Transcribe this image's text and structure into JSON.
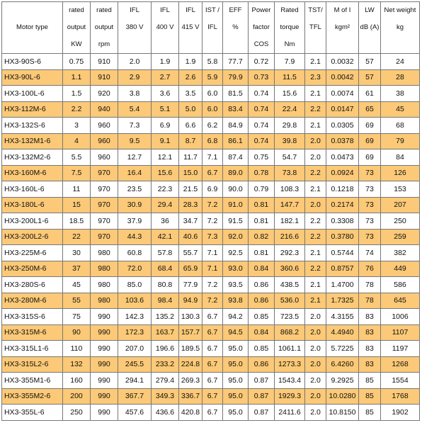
{
  "header": [
    {
      "lines": [
        "Motor type"
      ]
    },
    {
      "lines": [
        "rated",
        "output",
        "KW"
      ]
    },
    {
      "lines": [
        "rated",
        "output",
        "rpm"
      ]
    },
    {
      "lines": [
        "IFL",
        "380 V"
      ]
    },
    {
      "lines": [
        "IFL",
        "400 V"
      ]
    },
    {
      "lines": [
        "IFL",
        "415 V"
      ]
    },
    {
      "lines": [
        "IST /",
        "IFL"
      ]
    },
    {
      "lines": [
        "EFF",
        "%"
      ]
    },
    {
      "lines": [
        "Power",
        "factor",
        "COS"
      ]
    },
    {
      "lines": [
        "Rated",
        "torque",
        "Nm"
      ]
    },
    {
      "lines": [
        "TST/",
        "TFL"
      ]
    },
    {
      "lines": [
        "M of I",
        "kgm²"
      ]
    },
    {
      "lines": [
        "LW",
        "dB (A)"
      ]
    },
    {
      "lines": [
        "Net weight",
        "kg"
      ]
    }
  ],
  "rows": [
    [
      "HX3-90S-6",
      "0.75",
      "910",
      "2.0",
      "1.9",
      "1.9",
      "5.8",
      "77.7",
      "0.72",
      "7.9",
      "2.1",
      "0.0032",
      "57",
      "24"
    ],
    [
      "HX3-90L-6",
      "1.1",
      "910",
      "2.9",
      "2.7",
      "2.6",
      "5.9",
      "79.9",
      "0.73",
      "11.5",
      "2.3",
      "0.0042",
      "57",
      "28"
    ],
    [
      "HX3-100L-6",
      "1.5",
      "920",
      "3.8",
      "3.6",
      "3.5",
      "6.0",
      "81.5",
      "0.74",
      "15.6",
      "2.1",
      "0.0074",
      "61",
      "38"
    ],
    [
      "HX3-112M-6",
      "2.2",
      "940",
      "5.4",
      "5.1",
      "5.0",
      "6.0",
      "83.4",
      "0.74",
      "22.4",
      "2.2",
      "0.0147",
      "65",
      "45"
    ],
    [
      "HX3-132S-6",
      "3",
      "960",
      "7.3",
      "6.9",
      "6.6",
      "6.2",
      "84.9",
      "0.74",
      "29.8",
      "2.1",
      "0.0305",
      "69",
      "68"
    ],
    [
      "HX3-132M1-6",
      "4",
      "960",
      "9.5",
      "9.1",
      "8.7",
      "6.8",
      "86.1",
      "0.74",
      "39.8",
      "2.0",
      "0.0378",
      "69",
      "79"
    ],
    [
      "HX3-132M2-6",
      "5.5",
      "960",
      "12.7",
      "12.1",
      "11.7",
      "7.1",
      "87.4",
      "0.75",
      "54.7",
      "2.0",
      "0.0473",
      "69",
      "84"
    ],
    [
      "HX3-160M-6",
      "7.5",
      "970",
      "16.4",
      "15.6",
      "15.0",
      "6.7",
      "89.0",
      "0.78",
      "73.8",
      "2.2",
      "0.0924",
      "73",
      "126"
    ],
    [
      "HX3-160L-6",
      "11",
      "970",
      "23.5",
      "22.3",
      "21.5",
      "6.9",
      "90.0",
      "0.79",
      "108.3",
      "2.1",
      "0.1218",
      "73",
      "153"
    ],
    [
      "HX3-180L-6",
      "15",
      "970",
      "30.9",
      "29.4",
      "28.3",
      "7.2",
      "91.0",
      "0.81",
      "147.7",
      "2.0",
      "0.2174",
      "73",
      "207"
    ],
    [
      "HX3-200L1-6",
      "18.5",
      "970",
      "37.9",
      "36",
      "34.7",
      "7.2",
      "91.5",
      "0.81",
      "182.1",
      "2.2",
      "0.3308",
      "73",
      "250"
    ],
    [
      "HX3-200L2-6",
      "22",
      "970",
      "44.3",
      "42.1",
      "40.6",
      "7.3",
      "92.0",
      "0.82",
      "216.6",
      "2.2",
      "0.3780",
      "73",
      "259"
    ],
    [
      "HX3-225M-6",
      "30",
      "980",
      "60.8",
      "57.8",
      "55.7",
      "7.1",
      "92.5",
      "0.81",
      "292.3",
      "2.1",
      "0.5744",
      "74",
      "382"
    ],
    [
      "HX3-250M-6",
      "37",
      "980",
      "72.0",
      "68.4",
      "65.9",
      "7.1",
      "93.0",
      "0.84",
      "360.6",
      "2.2",
      "0.8757",
      "76",
      "449"
    ],
    [
      "HX3-280S-6",
      "45",
      "980",
      "85.0",
      "80.8",
      "77.9",
      "7.2",
      "93.5",
      "0.86",
      "438.5",
      "2.1",
      "1.4700",
      "78",
      "586"
    ],
    [
      "HX3-280M-6",
      "55",
      "980",
      "103.6",
      "98.4",
      "94.9",
      "7.2",
      "93.8",
      "0.86",
      "536.0",
      "2.1",
      "1.7325",
      "78",
      "645"
    ],
    [
      "HX3-315S-6",
      "75",
      "990",
      "142.3",
      "135.2",
      "130.3",
      "6.7",
      "94.2",
      "0.85",
      "723.5",
      "2.0",
      "4.3155",
      "83",
      "1006"
    ],
    [
      "HX3-315M-6",
      "90",
      "990",
      "172.3",
      "163.7",
      "157.7",
      "6.7",
      "94.5",
      "0.84",
      "868.2",
      "2.0",
      "4.4940",
      "83",
      "1107"
    ],
    [
      "HX3-315L1-6",
      "110",
      "990",
      "207.0",
      "196.6",
      "189.5",
      "6.7",
      "95.0",
      "0.85",
      "1061.1",
      "2.0",
      "5.7225",
      "83",
      "1197"
    ],
    [
      "HX3-315L2-6",
      "132",
      "990",
      "245.5",
      "233.2",
      "224.8",
      "6.7",
      "95.0",
      "0.86",
      "1273.3",
      "2.0",
      "6.4260",
      "83",
      "1268"
    ],
    [
      "HX3-355M1-6",
      "160",
      "990",
      "294.1",
      "279.4",
      "269.3",
      "6.7",
      "95.0",
      "0.87",
      "1543.4",
      "2.0",
      "9.2925",
      "85",
      "1554"
    ],
    [
      "HX3-355M2-6",
      "200",
      "990",
      "367.7",
      "349.3",
      "336.7",
      "6.7",
      "95.0",
      "0.87",
      "1929.3",
      "2.0",
      "10.0280",
      "85",
      "1768"
    ],
    [
      "HX3-355L-6",
      "250",
      "990",
      "457.6",
      "436.6",
      "420.8",
      "6.7",
      "95.0",
      "0.87",
      "2411.6",
      "2.0",
      "10.8150",
      "85",
      "1902"
    ]
  ]
}
